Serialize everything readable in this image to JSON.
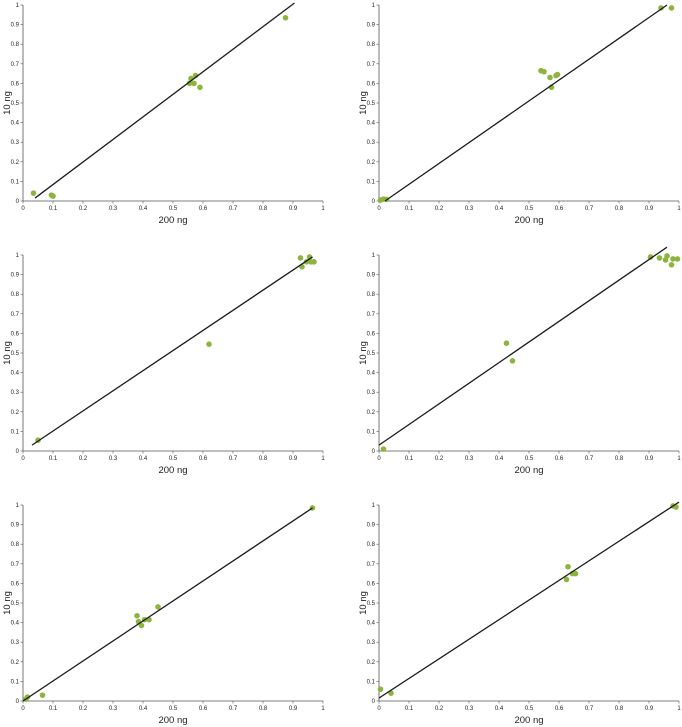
{
  "style": {
    "point_color": "#8db43e",
    "line_color": "#1a1a1a",
    "axis_color": "#555555"
  },
  "chart_data": [
    {
      "type": "scatter",
      "xlabel": "200 ng",
      "ylabel": "10 ng",
      "xlim": [
        0,
        1
      ],
      "ylim": [
        0,
        1
      ],
      "ticks": [
        "0",
        "0.1",
        "0.2",
        "0.3",
        "0.4",
        "0.5",
        "0.6",
        "0.7",
        "0.8",
        "0.9",
        "1"
      ],
      "points": [
        [
          0.035,
          0.04
        ],
        [
          0.095,
          0.03
        ],
        [
          0.1,
          0.025
        ],
        [
          0.555,
          0.6
        ],
        [
          0.56,
          0.625
        ],
        [
          0.57,
          0.6
        ],
        [
          0.575,
          0.64
        ],
        [
          0.59,
          0.58
        ],
        [
          0.875,
          0.935
        ]
      ],
      "trendline": [
        [
          0.04,
          0.015
        ],
        [
          0.905,
          1.01
        ]
      ]
    },
    {
      "type": "scatter",
      "xlabel": "200 ng",
      "ylabel": "10 ng",
      "xlim": [
        0,
        1
      ],
      "ylim": [
        0,
        1
      ],
      "ticks": [
        "0",
        "0.1",
        "0.2",
        "0.3",
        "0.4",
        "0.5",
        "0.6",
        "0.7",
        "0.8",
        "0.9",
        "1"
      ],
      "points": [
        [
          0.005,
          0.005
        ],
        [
          0.015,
          0.01
        ],
        [
          0.025,
          0.008
        ],
        [
          0.54,
          0.665
        ],
        [
          0.55,
          0.66
        ],
        [
          0.57,
          0.63
        ],
        [
          0.575,
          0.58
        ],
        [
          0.59,
          0.64
        ],
        [
          0.595,
          0.645
        ],
        [
          0.94,
          0.985
        ],
        [
          0.975,
          0.985
        ]
      ],
      "trendline": [
        [
          0.02,
          0.0
        ],
        [
          0.96,
          1.0
        ]
      ]
    },
    {
      "type": "scatter",
      "xlabel": "200 ng",
      "ylabel": "10 ng",
      "xlim": [
        0,
        1
      ],
      "ylim": [
        0,
        1
      ],
      "ticks": [
        "0",
        "0.1",
        "0.2",
        "0.3",
        "0.4",
        "0.5",
        "0.6",
        "0.7",
        "0.8",
        "0.9",
        "1"
      ],
      "points": [
        [
          0.05,
          0.055
        ],
        [
          0.62,
          0.545
        ],
        [
          0.925,
          0.985
        ],
        [
          0.93,
          0.94
        ],
        [
          0.945,
          0.965
        ],
        [
          0.955,
          0.99
        ],
        [
          0.96,
          0.965
        ],
        [
          0.97,
          0.965
        ]
      ],
      "trendline": [
        [
          0.03,
          0.03
        ],
        [
          0.965,
          0.99
        ]
      ]
    },
    {
      "type": "scatter",
      "xlabel": "200 ng",
      "ylabel": "10 ng",
      "xlim": [
        0,
        1
      ],
      "ylim": [
        0,
        1
      ],
      "ticks": [
        "0",
        "0.1",
        "0.2",
        "0.3",
        "0.4",
        "0.5",
        "0.6",
        "0.7",
        "0.8",
        "0.9",
        "1"
      ],
      "points": [
        [
          0.015,
          0.01
        ],
        [
          0.425,
          0.55
        ],
        [
          0.445,
          0.46
        ],
        [
          0.905,
          0.99
        ],
        [
          0.935,
          0.985
        ],
        [
          0.955,
          0.975
        ],
        [
          0.96,
          0.995
        ],
        [
          0.975,
          0.95
        ],
        [
          0.98,
          0.98
        ],
        [
          0.995,
          0.98
        ]
      ],
      "trendline": [
        [
          0.0,
          0.03
        ],
        [
          0.96,
          1.04
        ]
      ]
    },
    {
      "type": "scatter",
      "xlabel": "200 ng",
      "ylabel": "10 ng",
      "xlim": [
        0,
        1
      ],
      "ylim": [
        0,
        1
      ],
      "ticks": [
        "0",
        "0.1",
        "0.2",
        "0.3",
        "0.4",
        "0.5",
        "0.6",
        "0.7",
        "0.8",
        "0.9",
        "1"
      ],
      "points": [
        [
          0.01,
          0.01
        ],
        [
          0.015,
          0.02
        ],
        [
          0.065,
          0.03
        ],
        [
          0.38,
          0.435
        ],
        [
          0.385,
          0.405
        ],
        [
          0.395,
          0.385
        ],
        [
          0.405,
          0.415
        ],
        [
          0.42,
          0.415
        ],
        [
          0.45,
          0.48
        ],
        [
          0.965,
          0.985
        ]
      ],
      "trendline": [
        [
          0.0,
          0.0
        ],
        [
          0.965,
          0.985
        ]
      ]
    },
    {
      "type": "scatter",
      "xlabel": "200 ng",
      "ylabel": "10 ng",
      "xlim": [
        0,
        1
      ],
      "ylim": [
        0,
        1
      ],
      "ticks": [
        "0",
        "0.1",
        "0.2",
        "0.3",
        "0.4",
        "0.5",
        "0.6",
        "0.7",
        "0.8",
        "0.9",
        "1"
      ],
      "points": [
        [
          0.005,
          0.06
        ],
        [
          0.04,
          0.04
        ],
        [
          0.625,
          0.62
        ],
        [
          0.63,
          0.685
        ],
        [
          0.645,
          0.65
        ],
        [
          0.655,
          0.65
        ],
        [
          0.98,
          0.995
        ],
        [
          0.99,
          0.99
        ]
      ],
      "trendline": [
        [
          0.0,
          0.015
        ],
        [
          1.0,
          1.015
        ]
      ]
    }
  ]
}
